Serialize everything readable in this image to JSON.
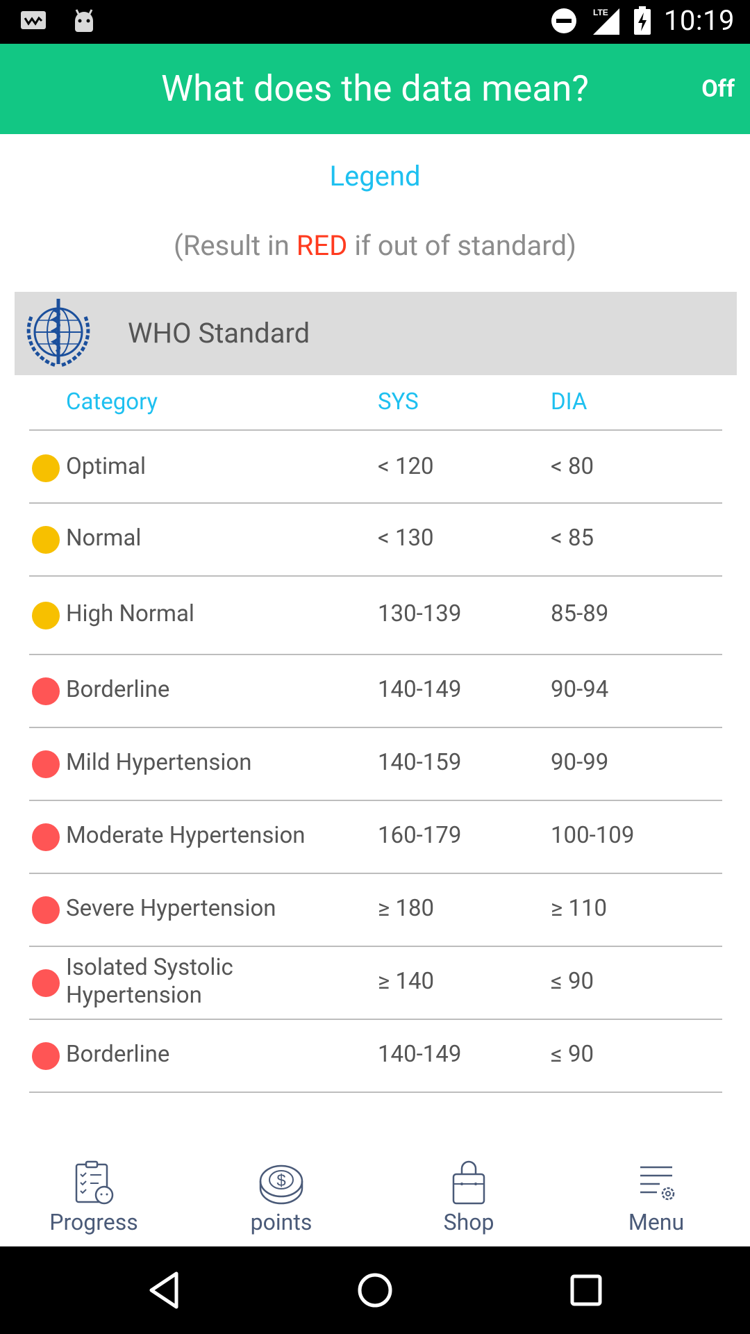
{
  "status_bar": {
    "time": "10:19",
    "left_icons": [
      "tv-app-icon",
      "android-app-icon"
    ],
    "right_icons": [
      "do-not-disturb-icon",
      "lte-signal-icon",
      "battery-charging-icon"
    ],
    "network": "LTE"
  },
  "app_bar": {
    "title": "What does the data mean?",
    "action_label": "Off",
    "color": "#12c784"
  },
  "legend": {
    "title": "Legend",
    "note_prefix": "(Result in ",
    "note_highlight": "RED",
    "note_suffix": " if out of standard)"
  },
  "standard": {
    "label": "WHO Standard",
    "logo": "who-logo"
  },
  "table": {
    "headers": {
      "category": "Category",
      "sys": "SYS",
      "dia": "DIA"
    },
    "rows": [
      {
        "category": "Optimal",
        "sys": "< 120",
        "dia": "< 80",
        "status": "yellow"
      },
      {
        "category": "Normal",
        "sys": "< 130",
        "dia": "< 85",
        "status": "yellow"
      },
      {
        "category": "High Normal",
        "sys": "130-139",
        "dia": "85-89",
        "status": "yellow"
      },
      {
        "category": "Borderline",
        "sys": "140-149",
        "dia": "90-94",
        "status": "red"
      },
      {
        "category": "Mild Hypertension",
        "sys": "140-159",
        "dia": "90-99",
        "status": "red"
      },
      {
        "category": "Moderate Hypertension",
        "sys": "160-179",
        "dia": "100-109",
        "status": "red"
      },
      {
        "category": "Severe Hypertension",
        "sys": "≥ 180",
        "dia": "≥ 110",
        "status": "red"
      },
      {
        "category": "Isolated Systolic Hypertension",
        "sys": "≥ 140",
        "dia": "≤ 90",
        "status": "red"
      },
      {
        "category": "Borderline",
        "sys": "140-149",
        "dia": "≤ 90",
        "status": "red"
      }
    ],
    "status_colors": {
      "yellow": "#f7c000",
      "red": "#ff5555"
    }
  },
  "tabs": [
    {
      "label": "Progress",
      "icon": "progress-clipboard-icon"
    },
    {
      "label": "points",
      "icon": "coin-dollar-icon"
    },
    {
      "label": "Shop",
      "icon": "shopping-bag-icon"
    },
    {
      "label": "Menu",
      "icon": "menu-settings-icon"
    }
  ],
  "nav_bar": {
    "buttons": [
      "back-icon",
      "home-icon",
      "recents-icon"
    ]
  }
}
